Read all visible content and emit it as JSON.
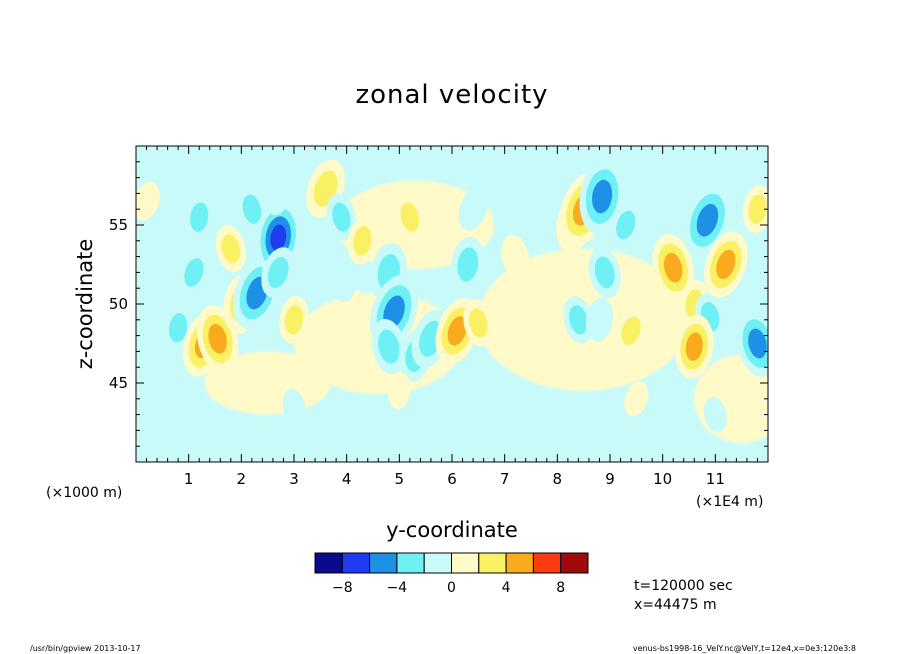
{
  "chart_data": {
    "type": "heatmap",
    "title": "zonal velocity",
    "xlabel": "y-coordinate",
    "ylabel": "z-coordinate",
    "x_units": "(×1E4 m)",
    "y_units": "(×1000 m)",
    "xlim": [
      0,
      12
    ],
    "ylim": [
      40,
      60
    ],
    "x_ticks": [
      "1",
      "2",
      "3",
      "4",
      "5",
      "6",
      "7",
      "8",
      "9",
      "10",
      "11"
    ],
    "y_ticks": [
      "45",
      "50",
      "55"
    ],
    "grid": false,
    "colorbar": {
      "levels": [
        -10,
        -8,
        -6,
        -4,
        -2,
        0,
        2,
        4,
        6,
        8,
        10
      ],
      "tick_labels": [
        "−8",
        "−4",
        "0",
        "4",
        "8"
      ],
      "colors": [
        "#0a0a8c",
        "#1f3cf0",
        "#1e90e6",
        "#6ef0f5",
        "#c8fafa",
        "#fffac8",
        "#faf064",
        "#faaa1e",
        "#fa3c14",
        "#a00a0a"
      ]
    },
    "features": [
      {
        "y": 0.2,
        "z": 56.5,
        "value": 1.5
      },
      {
        "y": 0.5,
        "z": 50.5,
        "value": -1.5
      },
      {
        "y": 0.8,
        "z": 48.5,
        "value": -2.5
      },
      {
        "y": 1.3,
        "z": 47.5,
        "value": 5
      },
      {
        "y": 1.55,
        "z": 47.8,
        "value": 5
      },
      {
        "y": 1.2,
        "z": 55.5,
        "value": -2.5
      },
      {
        "y": 1.1,
        "z": 52.0,
        "value": -2.5
      },
      {
        "y": 1.8,
        "z": 53.5,
        "value": 2.5
      },
      {
        "y": 2.0,
        "z": 50.0,
        "value": 4
      },
      {
        "y": 2.3,
        "z": 50.7,
        "value": -6
      },
      {
        "y": 2.2,
        "z": 56.0,
        "value": -2.5
      },
      {
        "y": 2.7,
        "z": 54.2,
        "value": -8
      },
      {
        "y": 2.7,
        "z": 52.0,
        "value": -3
      },
      {
        "y": 2.6,
        "z": 57.0,
        "value": -2
      },
      {
        "y": 3.0,
        "z": 49.0,
        "value": 2.5
      },
      {
        "y": 3.6,
        "z": 57.3,
        "value": 4
      },
      {
        "y": 3.9,
        "z": 55.5,
        "value": -2.5
      },
      {
        "y": 4.3,
        "z": 54.0,
        "value": 2.5
      },
      {
        "y": 4.1,
        "z": 49.5,
        "value": 2
      },
      {
        "y": 3.9,
        "z": 51.5,
        "value": -2
      },
      {
        "y": 4.8,
        "z": 52.0,
        "value": -4
      },
      {
        "y": 4.9,
        "z": 49.5,
        "value": -6
      },
      {
        "y": 4.8,
        "z": 47.3,
        "value": -3.5
      },
      {
        "y": 5.3,
        "z": 46.7,
        "value": -3
      },
      {
        "y": 5.6,
        "z": 47.8,
        "value": -4
      },
      {
        "y": 5.2,
        "z": 55.5,
        "value": 2.5
      },
      {
        "y": 5.6,
        "z": 54.0,
        "value": 2
      },
      {
        "y": 6.1,
        "z": 48.3,
        "value": 5
      },
      {
        "y": 6.5,
        "z": 48.8,
        "value": 2.5
      },
      {
        "y": 6.3,
        "z": 52.5,
        "value": -3.5
      },
      {
        "y": 6.4,
        "z": 56.0,
        "value": -2
      },
      {
        "y": 7.2,
        "z": 53.0,
        "value": 2
      },
      {
        "y": 8.3,
        "z": 55.0,
        "value": 3.5
      },
      {
        "y": 8.5,
        "z": 56.0,
        "value": 6
      },
      {
        "y": 8.4,
        "z": 49.0,
        "value": -2.5
      },
      {
        "y": 8.85,
        "z": 56.8,
        "value": -6
      },
      {
        "y": 9.3,
        "z": 55.0,
        "value": -2.5
      },
      {
        "y": 8.9,
        "z": 52.0,
        "value": -3
      },
      {
        "y": 8.8,
        "z": 49.0,
        "value": -2
      },
      {
        "y": 9.4,
        "z": 48.3,
        "value": 2.5
      },
      {
        "y": 10.2,
        "z": 52.3,
        "value": 5
      },
      {
        "y": 10.6,
        "z": 50.0,
        "value": 2.5
      },
      {
        "y": 10.85,
        "z": 55.3,
        "value": -6
      },
      {
        "y": 10.9,
        "z": 49.2,
        "value": -2.5
      },
      {
        "y": 10.6,
        "z": 47.3,
        "value": 4.5
      },
      {
        "y": 11.2,
        "z": 52.5,
        "value": 5
      },
      {
        "y": 11.8,
        "z": 47.5,
        "value": -5
      },
      {
        "y": 11.8,
        "z": 56.0,
        "value": 2.5
      },
      {
        "y": 0.8,
        "z": 42.0,
        "value": -1.2
      },
      {
        "y": 3.0,
        "z": 43.5,
        "value": -1
      },
      {
        "y": 6.8,
        "z": 42.5,
        "value": -1.2
      },
      {
        "y": 9.5,
        "z": 44.0,
        "value": 1
      },
      {
        "y": 11.0,
        "z": 43.0,
        "value": -1
      },
      {
        "y": 5.0,
        "z": 44.5,
        "value": 1
      }
    ]
  },
  "info": {
    "time": "t=120000 sec",
    "position": "x=44475 m"
  },
  "footer": {
    "left": "/usr/bin/gpview   2013-10-17",
    "right": "venus-bs1998-16_VelY.nc@VelY,t=12e4,x=0e3:120e3:8"
  }
}
